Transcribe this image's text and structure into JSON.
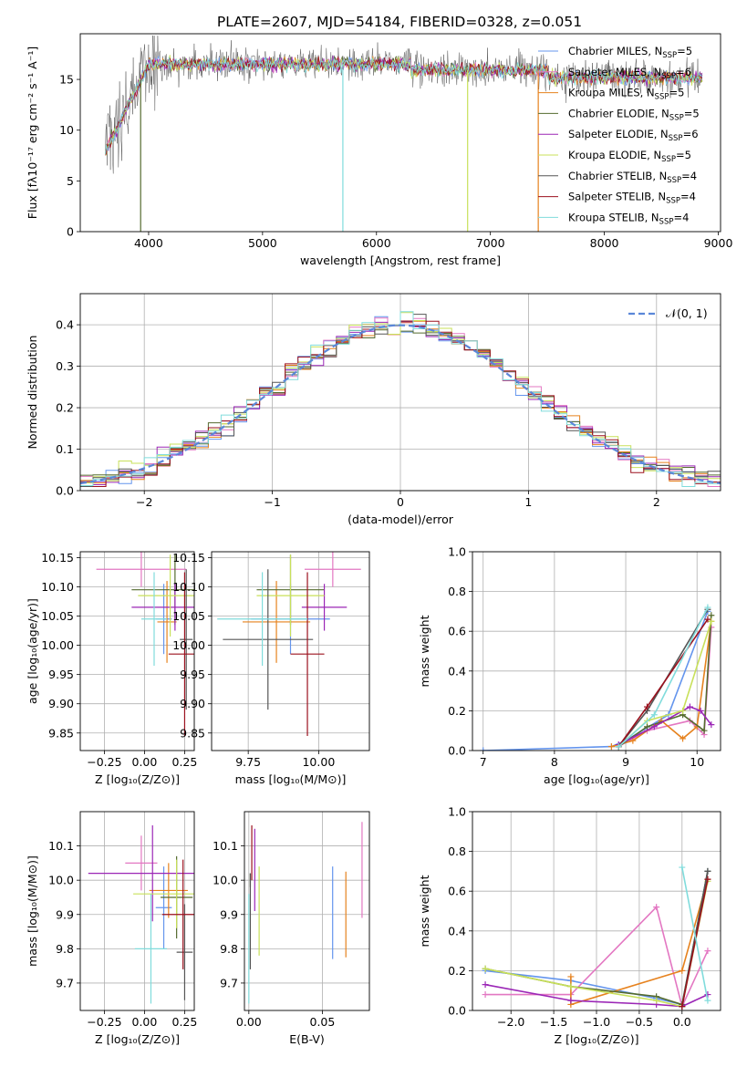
{
  "figure": {
    "title": "PLATE=2607, MJD=54184, FIBERID=0328, z=0.051",
    "colors": [
      "#6495ed",
      "#e377c2",
      "#e6821e",
      "#556b2f",
      "#9b26b6",
      "#c8e05a",
      "#555555",
      "#9b111e",
      "#80dcdc"
    ]
  },
  "chart_data": [
    {
      "id": "spectrum",
      "type": "line",
      "xlabel": "wavelength [Angstrom, rest frame]",
      "ylabel": "Flux [fλ10⁻¹⁷ erg cm⁻² s⁻¹ A⁻¹]",
      "xlim": [
        3400,
        9020
      ],
      "ylim": [
        0,
        19.5
      ],
      "xticks": [
        4000,
        5000,
        6000,
        7000,
        8000,
        9000
      ],
      "yticks": [
        0,
        5,
        10,
        15
      ],
      "legend_placement": "top-right",
      "data_x_range": [
        3620,
        8860
      ],
      "data_level_approx": 16.5,
      "series": [
        {
          "name": "Chabrier MILES, N_SSP=5"
        },
        {
          "name": "Salpeter MILES, N_SSP=6"
        },
        {
          "name": "Kroupa MILES, N_SSP=5"
        },
        {
          "name": "Chabrier ELODIE, N_SSP=5"
        },
        {
          "name": "Salpeter ELODIE, N_SSP=6"
        },
        {
          "name": "Kroupa ELODIE, N_SSP=5"
        },
        {
          "name": "Chabrier STELIB, N_SSP=4"
        },
        {
          "name": "Salpeter STELIB, N_SSP=4"
        },
        {
          "name": "Kroupa STELIB, N_SSP=4"
        }
      ]
    },
    {
      "id": "residuals",
      "type": "line",
      "xlabel": "(data-model)/error",
      "ylabel": "Normed distribution",
      "xlim": [
        -2.5,
        2.5
      ],
      "ylim": [
        0,
        0.475
      ],
      "xticks": [
        -2,
        -1,
        0,
        1,
        2
      ],
      "yticks": [
        0.0,
        0.1,
        0.2,
        0.3,
        0.4
      ],
      "grid": true,
      "legend": [
        "𝒩(0, 1)"
      ],
      "legend_placement": "top-right",
      "bin_width": 0.1
    },
    {
      "id": "age_vs_Z",
      "type": "scatter",
      "xlabel": "Z [log₁₀(Z/Z⊙)]",
      "ylabel": "age  [log₁₀(age/yr)]",
      "xlim": [
        -0.4,
        0.31
      ],
      "ylim": [
        9.82,
        10.16
      ],
      "xticks": [
        -0.25,
        0.0,
        0.25
      ],
      "yticks": [
        9.85,
        9.9,
        9.95,
        10.0,
        10.05,
        10.1,
        10.15
      ],
      "grid": true,
      "points": [
        {
          "x": 0.12,
          "y": 10.045,
          "xerr": 0.05,
          "yerr": 0.06
        },
        {
          "x": -0.02,
          "y": 10.13,
          "xerr": 0.28,
          "yerr": 0.03
        },
        {
          "x": 0.14,
          "y": 10.04,
          "xerr": 0.06,
          "yerr": 0.07
        },
        {
          "x": 0.19,
          "y": 10.095,
          "xerr": 0.27,
          "yerr": 0.06
        },
        {
          "x": 0.19,
          "y": 10.065,
          "xerr": 0.27,
          "yerr": 0.04
        },
        {
          "x": 0.16,
          "y": 10.085,
          "xerr": 0.2,
          "yerr": 0.07
        },
        {
          "x": 0.26,
          "y": 10.01,
          "xerr": 0.04,
          "yerr": 0.12
        },
        {
          "x": 0.25,
          "y": 9.985,
          "xerr": 0.1,
          "yerr": 0.14
        },
        {
          "x": 0.06,
          "y": 10.045,
          "xerr": 0.08,
          "yerr": 0.08
        }
      ]
    },
    {
      "id": "age_vs_mass",
      "type": "scatter",
      "xlabel": "mass [log₁₀(M/M⊙)]",
      "ylabel": "",
      "xlim": [
        9.62,
        10.18
      ],
      "ylim": [
        9.82,
        10.16
      ],
      "xticks": [
        9.75,
        10.0
      ],
      "yticks": [
        9.85,
        9.9,
        9.95,
        10.0,
        10.05,
        10.1,
        10.15
      ],
      "grid": true,
      "points": [
        {
          "x": 9.9,
          "y": 10.045,
          "xerr": 0.14,
          "yerr": 0.06
        },
        {
          "x": 10.05,
          "y": 10.13,
          "xerr": 0.1,
          "yerr": 0.03
        },
        {
          "x": 9.85,
          "y": 10.04,
          "xerr": 0.12,
          "yerr": 0.07
        },
        {
          "x": 9.9,
          "y": 10.095,
          "xerr": 0.12,
          "yerr": 0.06
        },
        {
          "x": 10.02,
          "y": 10.065,
          "xerr": 0.08,
          "yerr": 0.04
        },
        {
          "x": 9.9,
          "y": 10.085,
          "xerr": 0.12,
          "yerr": 0.07
        },
        {
          "x": 9.82,
          "y": 10.01,
          "xerr": 0.16,
          "yerr": 0.12
        },
        {
          "x": 9.96,
          "y": 9.985,
          "xerr": 0.06,
          "yerr": 0.14
        },
        {
          "x": 9.8,
          "y": 10.045,
          "xerr": 0.16,
          "yerr": 0.08
        }
      ]
    },
    {
      "id": "massweight_vs_age",
      "type": "line",
      "xlabel": "age  [log₁₀(age/yr)]",
      "ylabel": "mass weight",
      "xlim": [
        6.85,
        10.33
      ],
      "ylim": [
        0,
        1.0
      ],
      "xticks": [
        7,
        8,
        9,
        10
      ],
      "yticks": [
        0.0,
        0.2,
        0.4,
        0.6,
        0.8,
        1.0
      ],
      "grid": true,
      "series": [
        {
          "x": [
            7.0,
            8.8,
            9.0,
            9.6,
            10.15
          ],
          "y": [
            0.0,
            0.02,
            0.05,
            0.18,
            0.7
          ]
        },
        {
          "x": [
            8.9,
            9.3,
            9.9,
            10.1,
            10.2
          ],
          "y": [
            0.02,
            0.1,
            0.15,
            0.08,
            0.62
          ]
        },
        {
          "x": [
            8.8,
            9.1,
            9.5,
            9.8,
            10.0,
            10.2
          ],
          "y": [
            0.02,
            0.05,
            0.15,
            0.06,
            0.12,
            0.65
          ]
        },
        {
          "x": [
            8.9,
            9.3,
            9.8,
            10.1,
            10.2
          ],
          "y": [
            0.02,
            0.12,
            0.18,
            0.1,
            0.68
          ]
        },
        {
          "x": [
            8.9,
            9.4,
            9.9,
            10.05,
            10.2
          ],
          "y": [
            0.03,
            0.12,
            0.22,
            0.2,
            0.13
          ]
        },
        {
          "x": [
            8.9,
            9.3,
            9.8,
            10.2
          ],
          "y": [
            0.02,
            0.15,
            0.2,
            0.65
          ]
        },
        {
          "x": [
            8.9,
            9.3,
            10.15
          ],
          "y": [
            0.02,
            0.2,
            0.71
          ]
        },
        {
          "x": [
            8.9,
            9.3,
            10.15
          ],
          "y": [
            0.02,
            0.22,
            0.66
          ]
        },
        {
          "x": [
            8.9,
            9.4,
            10.15
          ],
          "y": [
            0.02,
            0.18,
            0.72
          ]
        }
      ]
    },
    {
      "id": "mass_vs_Z",
      "type": "scatter",
      "xlabel": "Z [log₁₀(Z/Z⊙)]",
      "ylabel": "mass [log₁₀(M/M⊙)]",
      "xlim": [
        -0.4,
        0.31
      ],
      "ylim": [
        9.62,
        10.2
      ],
      "xticks": [
        -0.25,
        0.0,
        0.25
      ],
      "yticks": [
        9.7,
        9.8,
        9.9,
        10.0,
        10.1
      ],
      "grid": true,
      "points": [
        {
          "x": 0.12,
          "y": 9.92,
          "xerr": 0.05,
          "yerr": 0.12
        },
        {
          "x": -0.02,
          "y": 10.05,
          "xerr": 0.1,
          "yerr": 0.08
        },
        {
          "x": 0.15,
          "y": 9.97,
          "xerr": 0.12,
          "yerr": 0.08
        },
        {
          "x": 0.2,
          "y": 9.95,
          "xerr": 0.1,
          "yerr": 0.12
        },
        {
          "x": 0.05,
          "y": 10.02,
          "xerr": 0.4,
          "yerr": 0.14
        },
        {
          "x": 0.2,
          "y": 9.96,
          "xerr": 0.27,
          "yerr": 0.1
        },
        {
          "x": 0.25,
          "y": 9.79,
          "xerr": 0.05,
          "yerr": 0.14
        },
        {
          "x": 0.24,
          "y": 9.9,
          "xerr": 0.13,
          "yerr": 0.16
        },
        {
          "x": 0.04,
          "y": 9.8,
          "xerr": 0.1,
          "yerr": 0.16
        }
      ]
    },
    {
      "id": "mass_vs_EBV",
      "type": "scatter",
      "xlabel": "E(B-V)",
      "ylabel": "",
      "xlim": [
        -0.003,
        0.082
      ],
      "ylim": [
        9.62,
        10.2
      ],
      "xticks": [
        0.0,
        0.05
      ],
      "yticks": [
        9.7,
        9.8,
        9.9,
        10.0,
        10.1
      ],
      "grid": true,
      "points": [
        {
          "x": 0.057,
          "y": 9.905,
          "yerr": 0.135
        },
        {
          "x": 0.077,
          "y": 10.03,
          "yerr": 0.14
        },
        {
          "x": 0.066,
          "y": 9.9,
          "yerr": 0.125
        },
        {
          "x": 0.001,
          "y": 10.0,
          "yerr": 0.02
        },
        {
          "x": 0.004,
          "y": 10.03,
          "yerr": 0.12
        },
        {
          "x": 0.007,
          "y": 9.91,
          "yerr": 0.13
        },
        {
          "x": 0.001,
          "y": 9.88,
          "yerr": 0.14
        },
        {
          "x": 0.002,
          "y": 10.08,
          "yerr": 0.08
        },
        {
          "x": 0.0,
          "y": 9.8,
          "yerr": 0.16
        }
      ]
    },
    {
      "id": "massweight_vs_Z",
      "type": "line",
      "xlabel": "Z [log₁₀(Z/Z⊙)]",
      "ylabel": "mass weight",
      "xlim": [
        -2.45,
        0.45
      ],
      "ylim": [
        0,
        1.0
      ],
      "xticks": [
        -2.0,
        -1.5,
        -1.0,
        -0.5,
        0.0
      ],
      "yticks": [
        0.0,
        0.2,
        0.4,
        0.6,
        0.8,
        1.0
      ],
      "grid": true,
      "series": [
        {
          "x": [
            -2.3,
            -1.3,
            -0.3,
            0.0,
            0.3
          ],
          "y": [
            0.2,
            0.15,
            0.06,
            0.03,
            0.7
          ]
        },
        {
          "x": [
            -2.3,
            -1.3,
            -0.3,
            0.0,
            0.3
          ],
          "y": [
            0.08,
            0.08,
            0.52,
            0.02,
            0.3
          ]
        },
        {
          "x": [
            -1.3,
            -1.3,
            0.0,
            0.3
          ],
          "y": [
            0.17,
            0.03,
            0.2,
            0.66
          ]
        },
        {
          "x": [
            -2.3,
            -1.3,
            -0.3,
            0.0,
            0.3
          ],
          "y": [
            0.21,
            0.12,
            0.07,
            0.03,
            0.7
          ]
        },
        {
          "x": [
            -2.3,
            -1.3,
            -0.3,
            0.0,
            0.3
          ],
          "y": [
            0.13,
            0.05,
            0.03,
            0.02,
            0.08
          ]
        },
        {
          "x": [
            -2.3,
            -1.3,
            -0.3,
            0.0,
            0.3
          ],
          "y": [
            0.21,
            0.12,
            0.05,
            0.02,
            0.65
          ]
        },
        {
          "x": [
            0.0,
            0.3
          ],
          "y": [
            0.02,
            0.7
          ]
        },
        {
          "x": [
            0.0,
            0.3
          ],
          "y": [
            0.02,
            0.66
          ]
        },
        {
          "x": [
            0.0,
            0.3
          ],
          "y": [
            0.72,
            0.05
          ]
        }
      ]
    }
  ]
}
